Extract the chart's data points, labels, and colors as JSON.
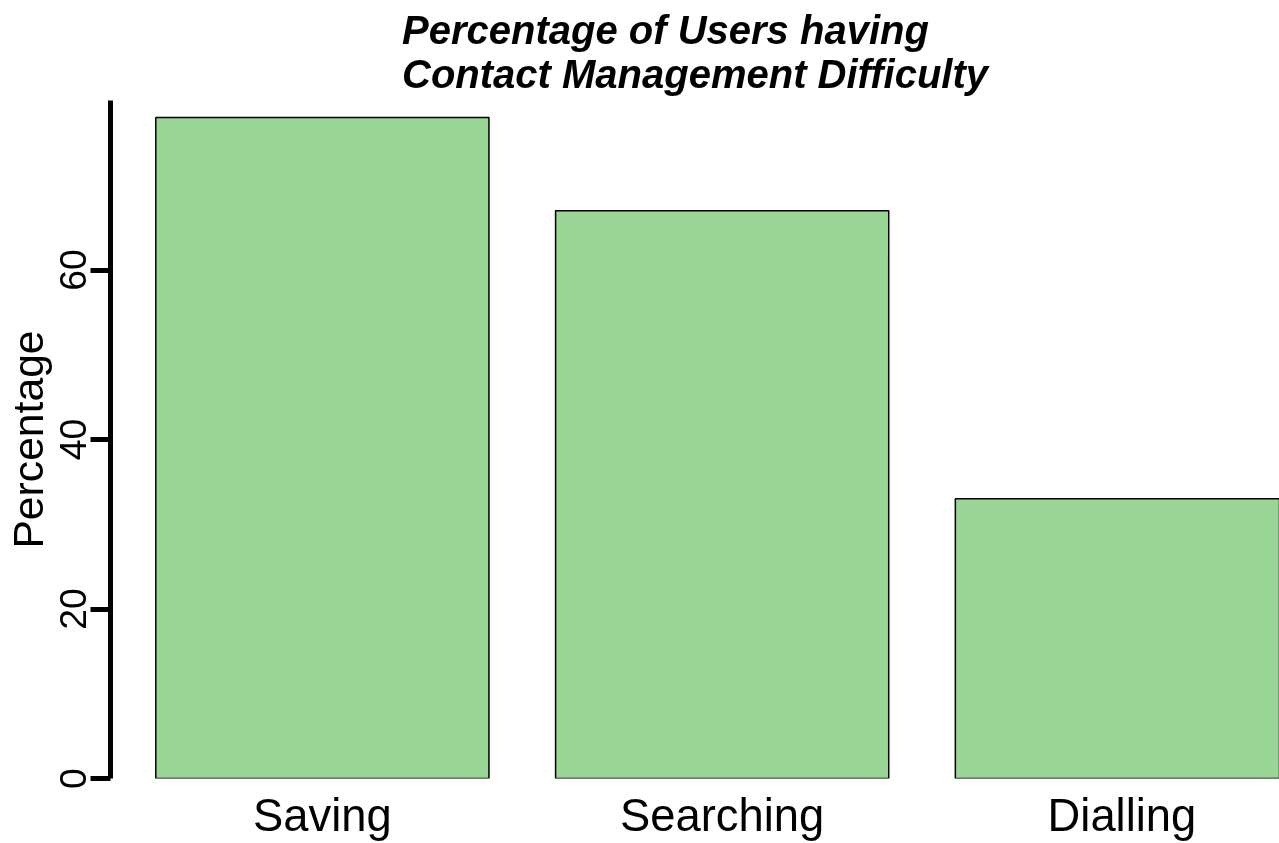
{
  "chart_data": {
    "type": "bar",
    "title": "Percentage of Users having\nContact Management Difficulty",
    "ylabel": "Percentage",
    "categories": [
      "Saving",
      "Searching",
      "Dialling"
    ],
    "values": [
      78,
      67,
      33
    ],
    "color": "#99d594",
    "ylim": [
      0,
      80
    ],
    "yticks": [
      0,
      20,
      40,
      60
    ],
    "grid": false
  }
}
